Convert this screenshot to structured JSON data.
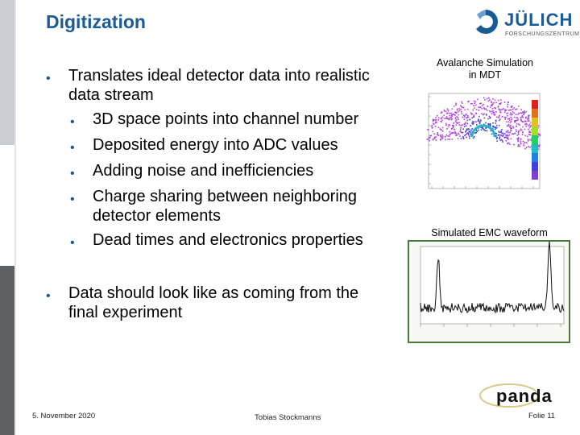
{
  "title": "Digitization",
  "logo": {
    "name": "JÜLICH",
    "sub": "FORSCHUNGSZENTRUM"
  },
  "bullets": {
    "main1": [
      "Translates ideal detector data into realistic",
      "data stream"
    ],
    "sub1": "3D space points into channel number",
    "sub2": "Deposited energy into ADC values",
    "sub3": "Adding noise and inefficiencies",
    "sub4": [
      "Charge sharing between neighboring",
      "detector elements"
    ],
    "sub5": "Dead times and electronics properties",
    "main2": [
      "Data should look like as coming from the",
      "final experiment"
    ]
  },
  "figures": {
    "avalanche_caption": [
      "Avalanche Simulation",
      "in MDT"
    ],
    "waveform_caption": "Simulated EMC waveform"
  },
  "footer": {
    "date": "5. November 2020",
    "author": "Tobias Stockmanns",
    "slide": "Folie 11",
    "panda_logo": "panda"
  },
  "colors": {
    "title": "#1a5a96",
    "bullet": "#1a5a96",
    "frame": "#4a7a3a"
  }
}
